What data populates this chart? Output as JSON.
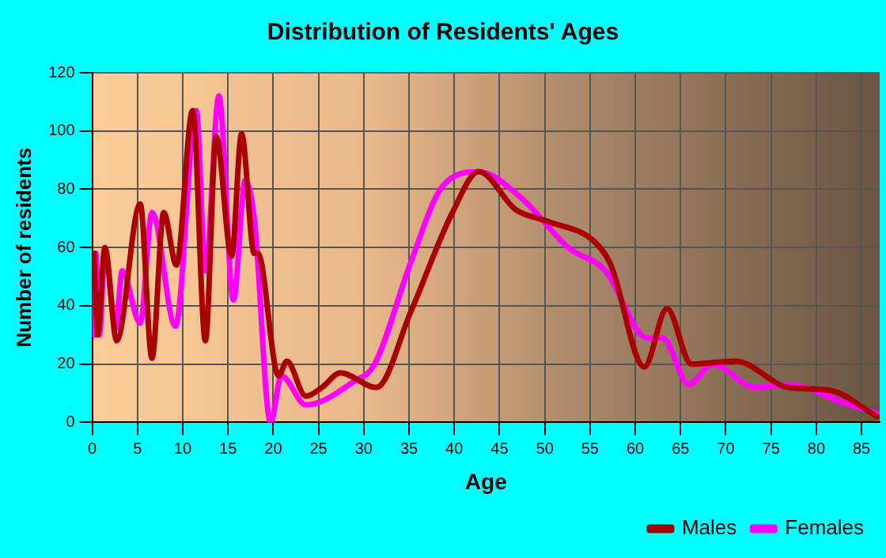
{
  "chart_data": {
    "type": "line",
    "title": "Distribution of Residents' Ages",
    "xlabel": "Age",
    "ylabel": "Number of residents",
    "xlim": [
      0,
      87
    ],
    "xticks": [
      0,
      5,
      10,
      15,
      20,
      25,
      30,
      35,
      40,
      45,
      50,
      55,
      60,
      65,
      70,
      75,
      80,
      85
    ],
    "ylim": [
      0,
      120
    ],
    "yticks": [
      0,
      20,
      40,
      60,
      80,
      100,
      120
    ],
    "grid": true,
    "legend": "bottom right",
    "marker": "none",
    "line_style": "solid",
    "series": [
      {
        "name": "Males",
        "color": "#aa0000",
        "x": [
          0.2,
          0.6,
          1.4,
          2.7,
          5.3,
          6.6,
          7.9,
          9.3,
          11.1,
          12.5,
          13.7,
          15.4,
          16.5,
          17.9,
          18.3,
          20.6,
          21.5,
          23.6,
          25.4,
          27.4,
          31.4,
          35.2,
          39.8,
          42.7,
          46.8,
          50.3,
          55.5,
          57.3,
          61.0,
          63.5,
          66.2,
          71.1,
          76.9,
          81.5,
          86.7
        ],
        "values": [
          58,
          30,
          60,
          28,
          75,
          22,
          72,
          54,
          107,
          28,
          98,
          57,
          99,
          58,
          58,
          16,
          21,
          9,
          12,
          17,
          12,
          38,
          72,
          86,
          73,
          69,
          62,
          54,
          19,
          39,
          20,
          21,
          12,
          11,
          2
        ]
      },
      {
        "name": "Females",
        "color": "#ff00ff",
        "x": [
          0.2,
          0.4,
          0.8,
          1.4,
          2.6,
          3.3,
          5.3,
          6.6,
          9.2,
          11.5,
          12.5,
          14.0,
          15.6,
          16.9,
          17.9,
          19.7,
          20.9,
          23.6,
          28.9,
          31.2,
          35.2,
          38.7,
          42.7,
          47.4,
          52.6,
          56.7,
          61.3,
          63.0,
          65.9,
          68.5,
          73.2,
          77.0,
          82.8,
          86.8
        ],
        "values": [
          30,
          58,
          30,
          59,
          32,
          52,
          34,
          72,
          33,
          107,
          52,
          112,
          42,
          83,
          70,
          0,
          16,
          6,
          14,
          20,
          55,
          81,
          86,
          77,
          60,
          52,
          29,
          29,
          13,
          20,
          12,
          13,
          7,
          3
        ]
      }
    ]
  }
}
